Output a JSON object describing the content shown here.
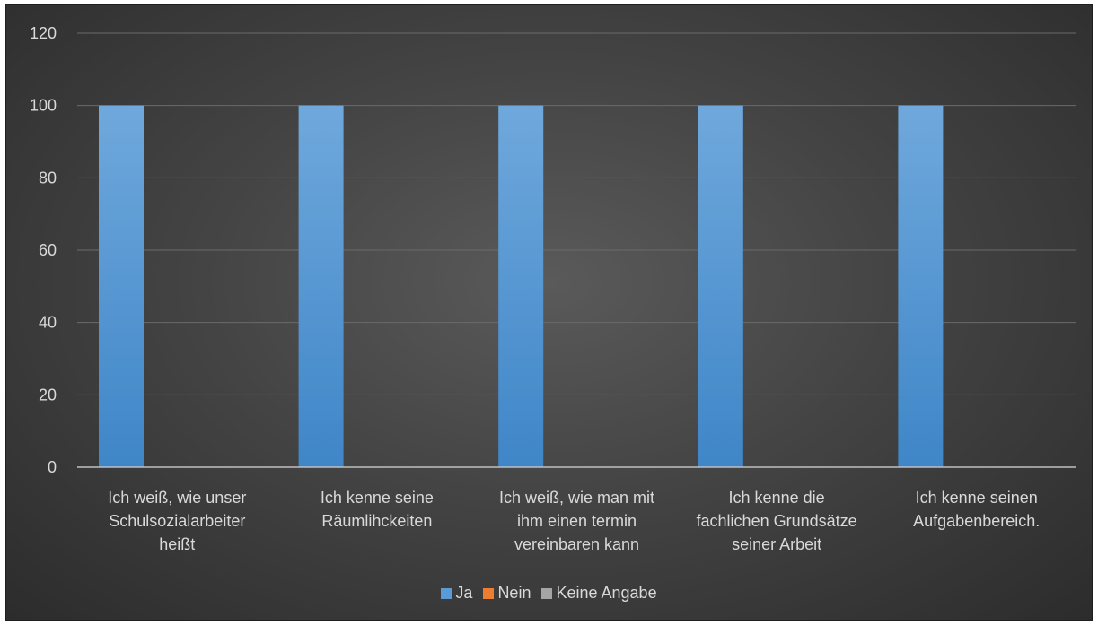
{
  "chart_data": {
    "type": "bar",
    "title": "",
    "xlabel": "",
    "ylabel": "",
    "ylim": [
      0,
      120
    ],
    "yticks": [
      0,
      20,
      40,
      60,
      80,
      100,
      120
    ],
    "grid": true,
    "legend_position": "bottom",
    "categories": [
      [
        "Ich weiß, wie unser",
        "Schulsozialarbeiter",
        "heißt"
      ],
      [
        "Ich kenne seine",
        "Räumlihckeiten"
      ],
      [
        "Ich weiß, wie man mit",
        "ihm einen termin",
        "vereinbaren kann"
      ],
      [
        "Ich kenne die",
        "fachlichen Grundsätze",
        "seiner Arbeit"
      ],
      [
        "Ich kenne seinen",
        "Aufgabenbereich."
      ]
    ],
    "series": [
      {
        "name": "Ja",
        "color": "#5b9bd5",
        "values": [
          100,
          100,
          100,
          100,
          100
        ]
      },
      {
        "name": "Nein",
        "color": "#ed7d31",
        "values": [
          0,
          0,
          0,
          0,
          0
        ]
      },
      {
        "name": "Keine Angabe",
        "color": "#a5a5a5",
        "values": [
          0,
          0,
          0,
          0,
          0
        ]
      }
    ]
  }
}
